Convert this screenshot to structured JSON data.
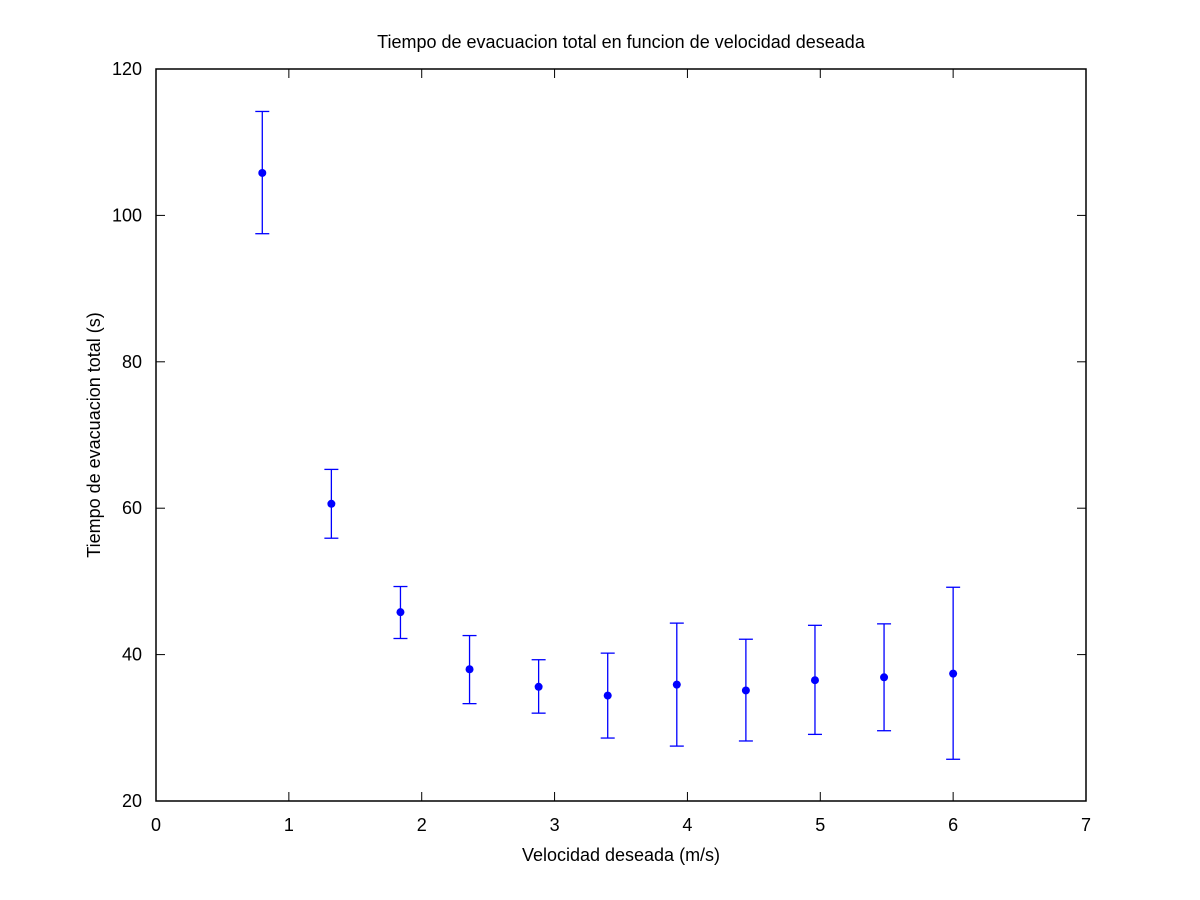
{
  "chart_data": {
    "type": "scatter",
    "title": "Tiempo de evacuacion total en funcion de velocidad deseada",
    "xlabel": "Velocidad deseada (m/s)",
    "ylabel": "Tiempo de evacuacion total (s)",
    "xlim": [
      0,
      7
    ],
    "ylim": [
      20,
      120
    ],
    "xticks": [
      0,
      1,
      2,
      3,
      4,
      5,
      6,
      7
    ],
    "yticks": [
      20,
      40,
      60,
      80,
      100,
      120
    ],
    "grid": false,
    "series": [
      {
        "color": "#0000ff",
        "marker": "dot",
        "error_bars": true,
        "points": [
          {
            "x": 0.8,
            "y": 105.8,
            "low": 97.5,
            "high": 114.2
          },
          {
            "x": 1.32,
            "y": 60.6,
            "low": 55.9,
            "high": 65.3
          },
          {
            "x": 1.84,
            "y": 45.8,
            "low": 42.2,
            "high": 49.3
          },
          {
            "x": 2.36,
            "y": 38.0,
            "low": 33.3,
            "high": 42.6
          },
          {
            "x": 2.88,
            "y": 35.6,
            "low": 32.0,
            "high": 39.3
          },
          {
            "x": 3.4,
            "y": 34.4,
            "low": 28.6,
            "high": 40.2
          },
          {
            "x": 3.92,
            "y": 35.9,
            "low": 27.5,
            "high": 44.3
          },
          {
            "x": 4.44,
            "y": 35.1,
            "low": 28.2,
            "high": 42.1
          },
          {
            "x": 4.96,
            "y": 36.5,
            "low": 29.1,
            "high": 44.0
          },
          {
            "x": 5.48,
            "y": 36.9,
            "low": 29.6,
            "high": 44.2
          },
          {
            "x": 6.0,
            "y": 37.4,
            "low": 25.7,
            "high": 49.2
          }
        ]
      }
    ]
  }
}
